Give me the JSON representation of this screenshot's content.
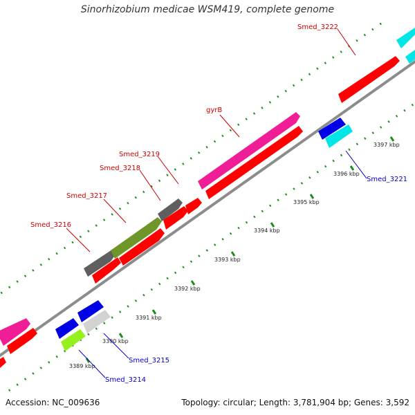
{
  "title": "Sinorhizobium medicae WSM419, complete genome",
  "footer": {
    "accession": "Accession: NC_009636",
    "summary": "Topology: circular; Length: 3,781,904 bp; Genes: 3,592"
  },
  "colors": {
    "backbone": "#8c8c8c",
    "gene_label_forward": "#cc0000",
    "gene_label_reverse": "#0000cc",
    "tick": "#1e8c1e",
    "cds_red": "#ff0000",
    "magenta": "#f01e96",
    "olive": "#6e9628",
    "gray": "#5f5f5f",
    "blue": "#0000e6",
    "cyan": "#00e6e6",
    "light_gray": "#d2d2d2",
    "lime": "#96f01e"
  },
  "ticks": [
    {
      "label": "3389 kbp",
      "kbp": 3389
    },
    {
      "label": "3390 kbp",
      "kbp": 3390
    },
    {
      "label": "3391 kbp",
      "kbp": 3391
    },
    {
      "label": "3392 kbp",
      "kbp": 3392
    },
    {
      "label": "3393 kbp",
      "kbp": 3393
    },
    {
      "label": "3394 kbp",
      "kbp": 3394
    },
    {
      "label": "3395 kbp",
      "kbp": 3395
    },
    {
      "label": "3396 kbp",
      "kbp": 3396
    },
    {
      "label": "3397 kbp",
      "kbp": 3397
    }
  ],
  "gene_labels": [
    {
      "label": "Smed_3222",
      "strand": "forward"
    },
    {
      "label": "gyrB",
      "strand": "forward"
    },
    {
      "label": "Smed_3219",
      "strand": "forward"
    },
    {
      "label": "Smed_3218",
      "strand": "forward"
    },
    {
      "label": "Smed_3217",
      "strand": "forward"
    },
    {
      "label": "Smed_3216",
      "strand": "forward"
    },
    {
      "label": "Smed_3221",
      "strand": "reverse"
    },
    {
      "label": "Smed_3215",
      "strand": "reverse"
    },
    {
      "label": "Smed_3214",
      "strand": "reverse"
    }
  ]
}
